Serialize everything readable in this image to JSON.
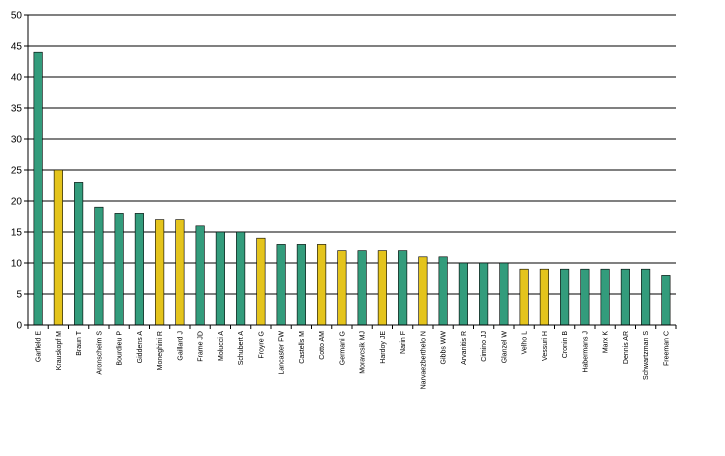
{
  "chart_data": {
    "type": "bar",
    "title": "",
    "xlabel": "",
    "ylabel": "",
    "ylim": [
      0,
      50
    ],
    "yticks": [
      0,
      5,
      10,
      15,
      20,
      25,
      30,
      35,
      40,
      45,
      50
    ],
    "grid": true,
    "legend": "none",
    "categories": [
      "Garfield E",
      "Krauskopf M",
      "Braun T",
      "Aronscheim S",
      "Bourdieu P",
      "Giddens A",
      "Moneghini R",
      "Gaillard J",
      "Frame JD",
      "Molucci A",
      "Schubert A",
      "Froyre G",
      "Lancaster FW",
      "Castells M",
      "Cotto AM",
      "Germani G",
      "Moravcsik MJ",
      "Hardoy JE",
      "Narin F",
      "Narvaezberthelo N",
      "Gibbs WW",
      "Arvanitis R",
      "Cimino JJ",
      "Glanzel W",
      "Velho L",
      "Vessuri H",
      "Cronin B",
      "Habermans J",
      "Marx K",
      "Dennis AR",
      "Schwartzman S",
      "Freeman C"
    ],
    "values": [
      44,
      25,
      23,
      19,
      18,
      18,
      17,
      17,
      16,
      15,
      15,
      14,
      13,
      13,
      13,
      12,
      12,
      12,
      12,
      11,
      11,
      10,
      10,
      10,
      9,
      9,
      9,
      9,
      9,
      9,
      9,
      8
    ],
    "groups": [
      "g",
      "y",
      "g",
      "g",
      "g",
      "g",
      "y",
      "y",
      "g",
      "g",
      "g",
      "y",
      "g",
      "g",
      "y",
      "y",
      "g",
      "y",
      "g",
      "y",
      "g",
      "g",
      "g",
      "g",
      "y",
      "y",
      "g",
      "g",
      "g",
      "g",
      "g",
      "g"
    ],
    "colors": {
      "g": "#339c7c",
      "y": "#e4c41c"
    }
  }
}
